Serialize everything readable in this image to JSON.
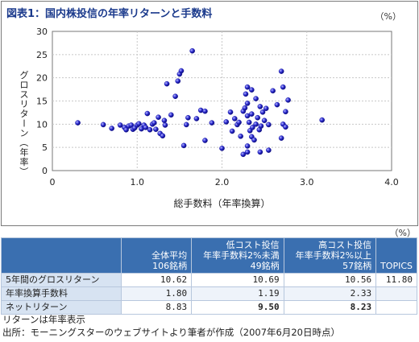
{
  "figure": {
    "title": "図表1：国内株投信の年率リターンと手数料",
    "unit": "（%）"
  },
  "chart_data": {
    "type": "scatter",
    "xlabel": "総手数料（年率換算）",
    "ylabel": "グロスリターン（年率）",
    "xlim": [
      0,
      4.0
    ],
    "ylim": [
      0,
      30
    ],
    "xticks": [
      "0",
      "1.0",
      "2.0",
      "3.0",
      "4.0"
    ],
    "yticks": [
      "0",
      "5",
      "10",
      "15",
      "20",
      "25",
      "30"
    ],
    "grid": true,
    "color": "#2a2ad0",
    "points": [
      [
        0.3,
        10.3
      ],
      [
        0.6,
        9.9
      ],
      [
        0.7,
        9.1
      ],
      [
        0.8,
        9.8
      ],
      [
        0.85,
        9.3
      ],
      [
        0.87,
        8.8
      ],
      [
        0.9,
        9.6
      ],
      [
        0.93,
        9.8
      ],
      [
        0.95,
        8.9
      ],
      [
        0.97,
        9.2
      ],
      [
        1.0,
        9.8
      ],
      [
        1.02,
        10.1
      ],
      [
        1.05,
        9.0
      ],
      [
        1.08,
        9.8
      ],
      [
        1.1,
        9.3
      ],
      [
        1.12,
        12.3
      ],
      [
        1.15,
        8.8
      ],
      [
        1.18,
        10.0
      ],
      [
        1.2,
        10.3
      ],
      [
        1.22,
        8.9
      ],
      [
        1.25,
        11.5
      ],
      [
        1.27,
        8.0
      ],
      [
        1.3,
        7.5
      ],
      [
        1.32,
        10.8
      ],
      [
        1.33,
        9.8
      ],
      [
        1.35,
        18.7
      ],
      [
        1.4,
        12.0
      ],
      [
        1.45,
        16.0
      ],
      [
        1.48,
        19.3
      ],
      [
        1.5,
        20.8
      ],
      [
        1.52,
        21.5
      ],
      [
        1.55,
        5.4
      ],
      [
        1.58,
        9.9
      ],
      [
        1.6,
        11.4
      ],
      [
        1.65,
        25.8
      ],
      [
        1.7,
        11.2
      ],
      [
        1.75,
        13.0
      ],
      [
        1.8,
        12.8
      ],
      [
        1.8,
        6.5
      ],
      [
        1.88,
        10.3
      ],
      [
        2.0,
        4.8
      ],
      [
        2.05,
        10.5
      ],
      [
        2.1,
        12.6
      ],
      [
        2.12,
        8.5
      ],
      [
        2.15,
        11.2
      ],
      [
        2.18,
        9.9
      ],
      [
        2.2,
        10.4
      ],
      [
        2.22,
        7.4
      ],
      [
        2.25,
        12.8
      ],
      [
        2.27,
        13.5
      ],
      [
        2.3,
        14.5
      ],
      [
        2.3,
        11.8
      ],
      [
        2.32,
        10.4
      ],
      [
        2.33,
        8.6
      ],
      [
        2.35,
        7.3
      ],
      [
        2.35,
        12.2
      ],
      [
        2.36,
        9.3
      ],
      [
        2.38,
        6.6
      ],
      [
        2.4,
        10.0
      ],
      [
        2.42,
        11.4
      ],
      [
        2.44,
        8.8
      ],
      [
        2.45,
        13.8
      ],
      [
        2.46,
        9.6
      ],
      [
        2.48,
        12.6
      ],
      [
        2.5,
        10.8
      ],
      [
        2.52,
        13.4
      ],
      [
        2.55,
        9.9
      ],
      [
        2.3,
        18.0
      ],
      [
        2.35,
        17.4
      ],
      [
        2.28,
        16.5
      ],
      [
        2.4,
        15.5
      ],
      [
        2.3,
        5.3
      ],
      [
        2.3,
        4.0
      ],
      [
        2.25,
        3.5
      ],
      [
        2.45,
        4.0
      ],
      [
        2.55,
        4.4
      ],
      [
        2.6,
        17.2
      ],
      [
        2.65,
        14.2
      ],
      [
        2.7,
        21.4
      ],
      [
        2.72,
        18.0
      ],
      [
        2.75,
        12.7
      ],
      [
        2.78,
        15.2
      ],
      [
        2.7,
        7.0
      ],
      [
        2.72,
        10.0
      ],
      [
        2.75,
        9.4
      ],
      [
        3.18,
        10.9
      ]
    ]
  },
  "table": {
    "unit": "（%）",
    "headers": [
      "",
      "全体平均\n106銘柄",
      "低コスト投信\n年率手数料2%未満\n49銘柄",
      "高コスト投信\n年率手数料2%以上\n57銘柄",
      "TOPICS"
    ],
    "rows": [
      {
        "label": "5年間のグロスリターン",
        "values": [
          "10.62",
          "10.69",
          "10.56",
          "11.80"
        ]
      },
      {
        "label": "年率換算手数料",
        "values": [
          "1.80",
          "1.19",
          "2.33",
          ""
        ]
      },
      {
        "label": "ネットリターン",
        "values": [
          "8.83",
          "9.50",
          "8.23",
          ""
        ]
      }
    ]
  },
  "notes": [
    "リターンは年率表示",
    "出所：モーニングスターのウェブサイトより筆者が作成（2007年6月20日時点）"
  ]
}
